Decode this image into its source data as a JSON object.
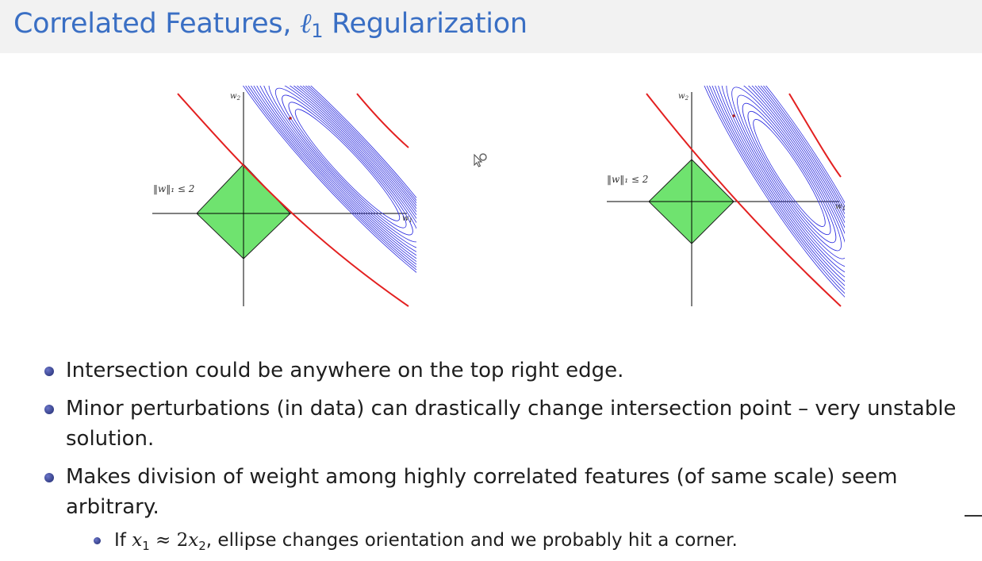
{
  "slide": {
    "title_prefix": "Correlated Features, ",
    "title_ell": "ℓ",
    "title_sub": "1",
    "title_suffix": " Regularization"
  },
  "figures": [
    {
      "axis_x": "w1",
      "axis_y": "w2",
      "norm_label": "‖w‖₁ ≤ 2"
    },
    {
      "axis_x": "w1",
      "axis_y": "w2",
      "norm_label": "‖w‖₁ ≤ 2"
    }
  ],
  "bullets": {
    "b1": "Intersection could be anywhere on the top right edge.",
    "b2": "Minor perturbations (in data) can drastically change intersection point – very unstable solution.",
    "b3": "Makes division of weight among highly correlated features (of same scale) seem arbitrary.",
    "sub": {
      "prefix": "If ",
      "x1": "x",
      "x1_sub": "1",
      "approx": " ≈ 2",
      "x2": "x",
      "x2_sub": "2",
      "suffix": ", ellipse changes orientation and we probably hit a corner."
    }
  },
  "colors": {
    "title": "#3a6fc4",
    "diamond": "#6fe36f",
    "contours": "#2a2adf",
    "outer_contour": "#e32020",
    "bullet": "#2b3590"
  },
  "icons": {
    "cursor": "cursor-magnifier-icon"
  }
}
